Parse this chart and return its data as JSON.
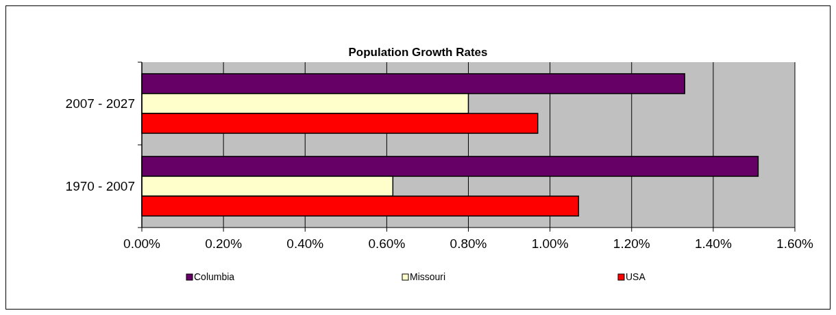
{
  "chart_data": {
    "type": "bar",
    "orientation": "horizontal",
    "title": "Population Growth Rates",
    "categories": [
      "2007 - 2027",
      "1970 - 2007"
    ],
    "series": [
      {
        "name": "Columbia",
        "color": "#660066",
        "values": [
          1.33,
          1.51
        ]
      },
      {
        "name": "Missouri",
        "color": "#ffffcc",
        "values": [
          0.8,
          0.615
        ]
      },
      {
        "name": "USA",
        "color": "#ff0000",
        "values": [
          0.97,
          1.07
        ]
      }
    ],
    "xlim": [
      0,
      1.6
    ],
    "xticks": [
      {
        "value": 0,
        "label": "0.00%"
      },
      {
        "value": 0.2,
        "label": "0.20%"
      },
      {
        "value": 0.4,
        "label": "0.40%"
      },
      {
        "value": 0.6,
        "label": "0.60%"
      },
      {
        "value": 0.8,
        "label": "0.80%"
      },
      {
        "value": 1.0,
        "label": "1.00%"
      },
      {
        "value": 1.2,
        "label": "1.20%"
      },
      {
        "value": 1.4,
        "label": "1.40%"
      },
      {
        "value": 1.6,
        "label": "1.60%"
      }
    ],
    "grid": "x",
    "legend": "bottom"
  }
}
